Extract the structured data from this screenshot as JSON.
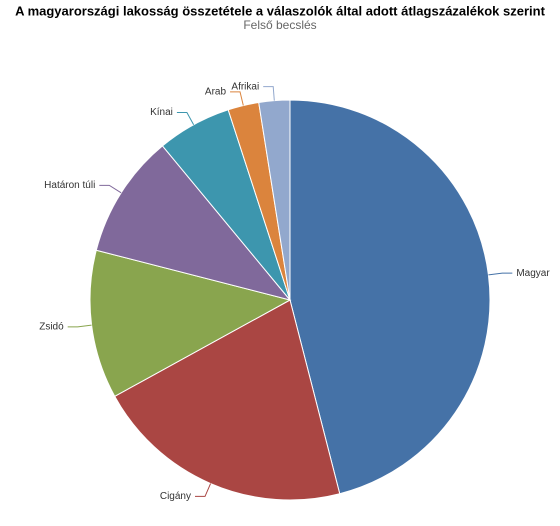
{
  "chart_data": {
    "type": "pie",
    "title": "A magyarországi lakosság összetétele a válaszolók által adott átlagszázalékok szerint",
    "subtitle": "Felső becslés",
    "categories": [
      "Magyar",
      "Cigány",
      "Zsidó",
      "Határon túli",
      "Kínai",
      "Arab",
      "Afrikai"
    ],
    "values": [
      46,
      21,
      12,
      10,
      6,
      2.5,
      2.5
    ],
    "colors": [
      "#4572a7",
      "#aa4643",
      "#89a54e",
      "#80699b",
      "#3d96ae",
      "#db843d",
      "#92a8cd"
    ]
  }
}
